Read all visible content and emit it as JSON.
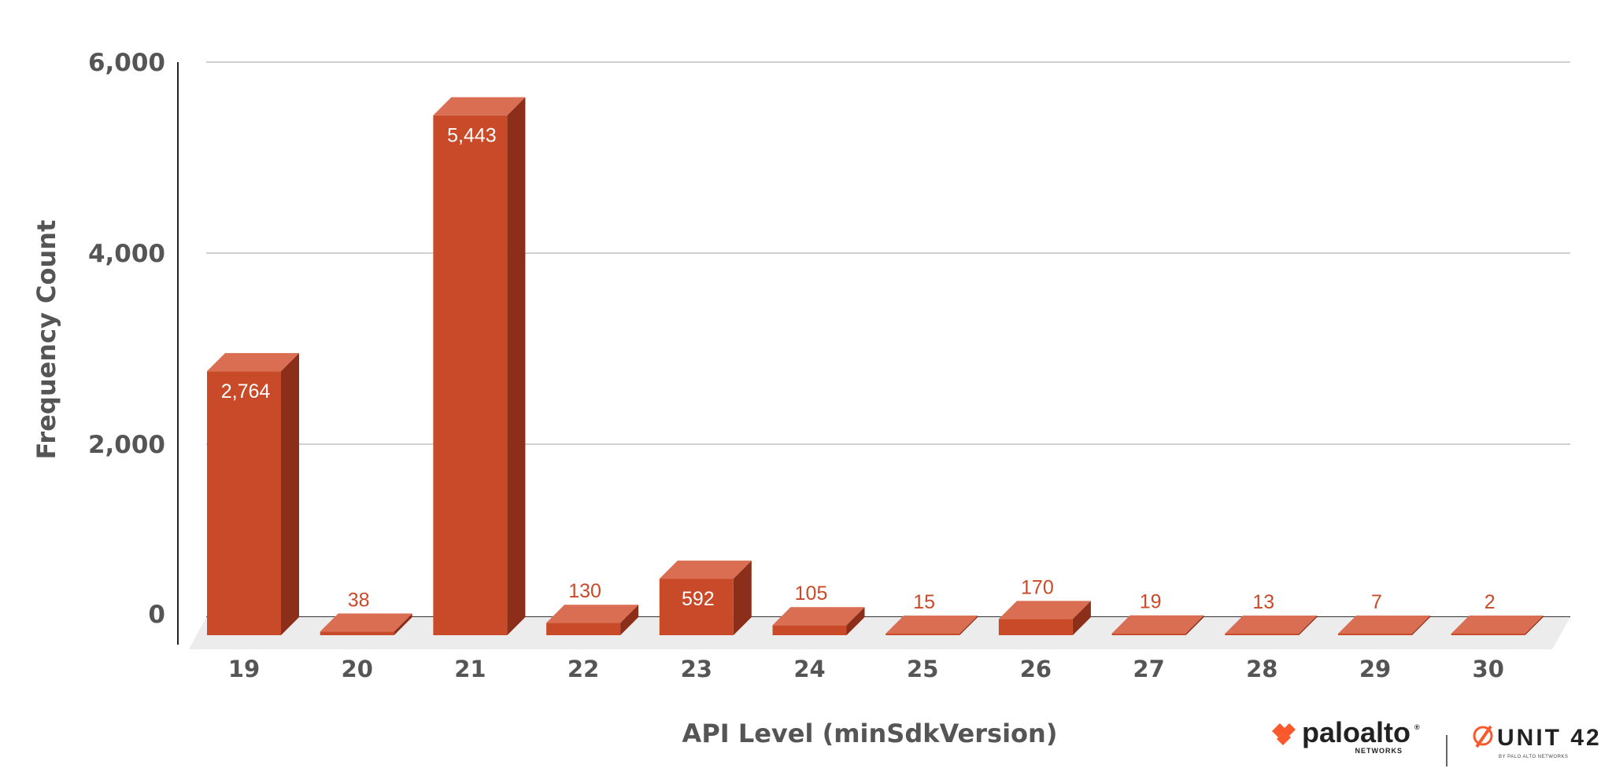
{
  "chart_data": {
    "type": "bar",
    "categories": [
      "19",
      "20",
      "21",
      "22",
      "23",
      "24",
      "25",
      "26",
      "27",
      "28",
      "29",
      "30"
    ],
    "values": [
      2764,
      38,
      5443,
      130,
      592,
      105,
      15,
      170,
      19,
      13,
      7,
      2
    ],
    "data_labels": [
      "2,764",
      "38",
      "5,443",
      "130",
      "592",
      "105",
      "15",
      "170",
      "19",
      "13",
      "7",
      "2"
    ],
    "title": "",
    "xlabel": "API Level (minSdkVersion)",
    "ylabel": "Frequency Count",
    "ylim": [
      0,
      6000
    ],
    "yticks": [
      0,
      2000,
      4000,
      6000
    ],
    "ytick_labels": [
      "0",
      "2,000",
      "4,000",
      "6,000"
    ],
    "grid": true,
    "legend": "none",
    "style": "3d-column"
  },
  "colors": {
    "bar_front": "#c84a28",
    "bar_top": "#d96e52",
    "bar_side": "#8c2f1a",
    "floor": "#ececec",
    "gridline": "#d0d0d0",
    "axis_text": "#555555",
    "label_inside": "#ffffff",
    "label_outside": "#c84a28",
    "brand_orange": "#fa582d"
  },
  "branding": {
    "logo1_text": "paloalto",
    "logo1_reg": "®",
    "logo1_sub": "NETWORKS",
    "logo2_text": "UNIT 42",
    "logo2_sub": "BY PALO ALTO NETWORKS"
  }
}
